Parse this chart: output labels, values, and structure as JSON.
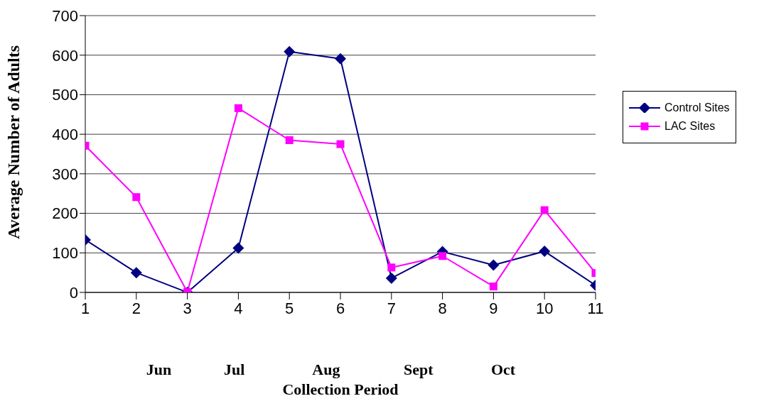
{
  "chart_data": {
    "type": "line",
    "xlabel": "Collection Period",
    "ylabel": "Average Number of Adults",
    "x": [
      1,
      2,
      3,
      4,
      5,
      6,
      7,
      8,
      9,
      10,
      11
    ],
    "xlim": [
      1,
      11
    ],
    "xticks": [
      1,
      2,
      3,
      4,
      5,
      6,
      7,
      8,
      9,
      10,
      11
    ],
    "ylim": [
      0,
      700
    ],
    "yticks": [
      0,
      100,
      200,
      300,
      400,
      500,
      600,
      700
    ],
    "grid": "y",
    "legend": "right",
    "series": [
      {
        "name": "Control Sites",
        "color": "#000080",
        "marker": "diamond",
        "values": [
          133,
          50,
          0,
          112,
          609,
          591,
          36,
          103,
          69,
          104,
          18
        ]
      },
      {
        "name": "LAC Sites",
        "color": "#ff00ff",
        "marker": "square",
        "values": [
          371,
          241,
          1,
          466,
          385,
          375,
          63,
          92,
          15,
          208,
          49
        ]
      }
    ],
    "annotations": [
      "Jun",
      "Jul",
      "Aug",
      "Sept",
      "Oct"
    ]
  }
}
